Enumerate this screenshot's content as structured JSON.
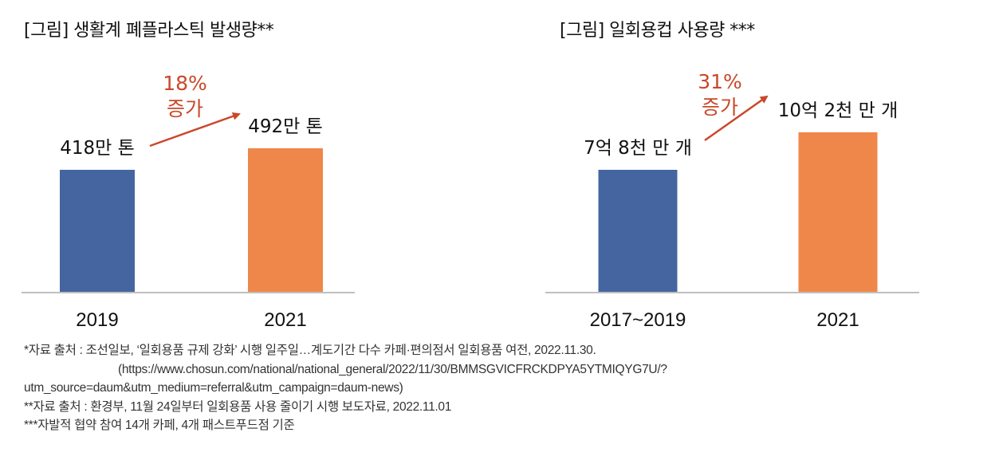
{
  "chart_data": [
    {
      "type": "bar",
      "title": "[그림] 생활계 폐플라스틱 발생량**",
      "categories": [
        "2019",
        "2021"
      ],
      "values": [
        418,
        492
      ],
      "unit": "만 톤",
      "data_labels": [
        "418만 톤",
        "492만 톤"
      ],
      "annotation": {
        "line1": "18%",
        "line2": "증가"
      },
      "colors": [
        "#44659f",
        "#f0874a"
      ],
      "annotation_color": "#c9482a",
      "xlabel": "",
      "ylabel": "",
      "ylim": [
        0,
        700
      ],
      "grid": false,
      "legend": "none"
    },
    {
      "type": "bar",
      "title": "[그림] 일회용컵 사용량 ***",
      "categories": [
        "2017~2019",
        "2021"
      ],
      "values": [
        7.8,
        10.2
      ],
      "unit": "억 개",
      "data_labels": [
        "7억 8천 만 개",
        "10억 2천 만 개"
      ],
      "annotation": {
        "line1": "31%",
        "line2": "증가"
      },
      "colors": [
        "#44659f",
        "#f0874a"
      ],
      "annotation_color": "#c9482a",
      "xlabel": "",
      "ylabel": "",
      "ylim": [
        0,
        14.5
      ],
      "grid": false,
      "legend": "none"
    }
  ],
  "footnotes": [
    "*자료 출처 : 조선일보, ‘일회용품 규제 강화’ 시행 일주일…계도기간 다수 카페·편의점서 일회용품 여전, 2022.11.30.",
    "(https://www.chosun.com/national/national_general/2022/11/30/BMMSGVICFRCKDPYA5YTMIQYG7U/?",
    "utm_source=daum&utm_medium=referral&utm_campaign=daum-news)",
    "**자료 출처 : 환경부, 11월 24일부터 일회용품 사용 줄이기 시행 보도자료, 2022.11.01",
    "***자발적 협약 참여 14개 카페, 4개 패스트푸드점 기준"
  ]
}
